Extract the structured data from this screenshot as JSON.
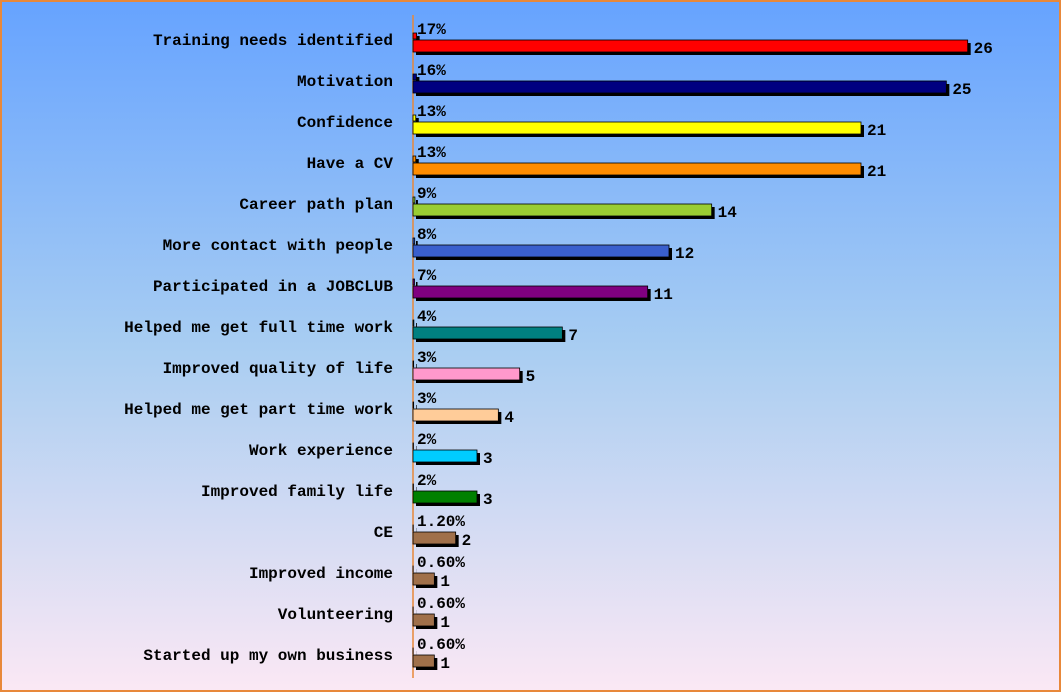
{
  "chart_data": {
    "type": "bar",
    "orientation": "horizontal",
    "categories": [
      "Training needs identified",
      "Motivation",
      "Confidence",
      "Have a CV",
      "Career path plan",
      "More contact with people",
      "Participated in a JOBCLUB",
      "Helped me get full time work",
      "Improved quality of life",
      "Helped me get part time work",
      "Work experience",
      "Improved family life",
      "CE",
      "Improved income",
      "Volunteering",
      "Started up my own business"
    ],
    "colors": [
      "#ff0000",
      "#000080",
      "#ffff00",
      "#ff8c00",
      "#9acd32",
      "#3a5fcd",
      "#800080",
      "#008080",
      "#ff99cc",
      "#ffcc99",
      "#00ccff",
      "#008000",
      "#a0704a",
      "#a0704a",
      "#a0704a",
      "#a0704a"
    ],
    "series": [
      {
        "values": [
          0.17,
          0.16,
          0.13,
          0.13,
          0.09,
          0.08,
          0.07,
          0.04,
          0.03,
          0.03,
          0.02,
          0.02,
          0.012,
          0.006,
          0.006,
          0.006
        ],
        "value_labels": [
          "17%",
          "16%",
          "13%",
          "13%",
          "9%",
          "8%",
          "7%",
          "4%",
          "3%",
          "3%",
          "2%",
          "2%",
          "1.20%",
          "0.60%",
          "0.60%",
          "0.60%"
        ]
      },
      {
        "values": [
          26,
          25,
          21,
          21,
          14,
          12,
          11,
          7,
          5,
          4,
          3,
          3,
          2,
          1,
          1,
          1
        ]
      }
    ],
    "xlim": [
      0,
      30
    ]
  }
}
